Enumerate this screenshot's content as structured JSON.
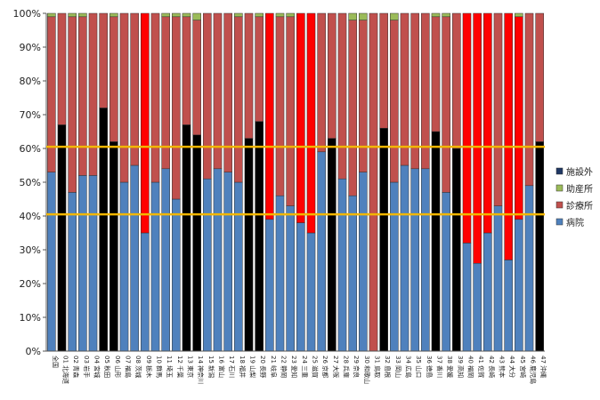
{
  "chart_data": {
    "type": "bar",
    "stacked": true,
    "ylim": [
      0,
      100
    ],
    "yticks": [
      "0%",
      "10%",
      "20%",
      "30%",
      "40%",
      "50%",
      "60%",
      "70%",
      "80%",
      "90%",
      "100%"
    ],
    "grid": false,
    "legend_position": "right",
    "reference_lines": [
      60.5,
      40.5
    ],
    "reference_line_color": "#f2b600",
    "categories": [
      "全国",
      "01 北海道",
      "02 青森",
      "03 岩手",
      "04 宮城",
      "05 秋田",
      "06 山形",
      "07 福島",
      "08 茨城",
      "09 栃木",
      "10 群馬",
      "11 埼玉",
      "12 千葉",
      "13 東京",
      "14 神奈川",
      "15 新潟",
      "16 富山",
      "17 石川",
      "18 福井",
      "19 山梨",
      "20 長野",
      "21 岐阜",
      "22 静岡",
      "23 愛知",
      "24 三重",
      "25 滋賀",
      "26 京都",
      "27 大阪",
      "28 兵庫",
      "29 奈良",
      "30 和歌山",
      "31 鳥取",
      "32 島根",
      "33 岡山",
      "34 広島",
      "35 山口",
      "36 徳島",
      "37 香川",
      "38 愛媛",
      "39 高知",
      "40 福岡",
      "41 佐賀",
      "42 長崎",
      "43 熊本",
      "44 大分",
      "45 宮崎",
      "46 鹿児島",
      "47 沖縄"
    ],
    "series": [
      {
        "name": "病院",
        "color": "#4f81bd",
        "values": [
          53,
          67,
          47,
          52,
          52,
          72,
          62,
          50,
          55,
          35,
          50,
          54,
          45,
          67,
          64,
          51,
          54,
          53,
          50,
          63,
          68,
          39,
          46,
          43,
          38,
          35,
          59,
          63,
          51,
          46,
          53,
          0,
          66,
          50,
          55,
          54,
          54,
          65,
          47,
          60,
          32,
          26,
          35,
          43,
          27,
          39,
          49,
          62
        ]
      },
      {
        "name": "診療所",
        "color": "#c0504d",
        "values": [
          46,
          33,
          52,
          47,
          48,
          28,
          37,
          50,
          45,
          65,
          50,
          45,
          54,
          32,
          34,
          49,
          46,
          47,
          49,
          37,
          31,
          61,
          53,
          56,
          62,
          65,
          41,
          37,
          49,
          52,
          45,
          100,
          34,
          48,
          45,
          46,
          46,
          34,
          52,
          40,
          68,
          74,
          65,
          57,
          73,
          60,
          51,
          38
        ]
      },
      {
        "name": "助産所",
        "color": "#9bbb59",
        "values": [
          1,
          0,
          1,
          1,
          0,
          0,
          1,
          0,
          0,
          0,
          0,
          1,
          1,
          1,
          2,
          0,
          0,
          0,
          1,
          0,
          1,
          0,
          1,
          1,
          0,
          0,
          0,
          0,
          0,
          2,
          2,
          0,
          0,
          2,
          0,
          0,
          0,
          1,
          1,
          0,
          0,
          0,
          0,
          0,
          0,
          1,
          0,
          0
        ]
      },
      {
        "name": "施設外",
        "color": "#1f3864",
        "values": [
          0,
          0,
          0,
          0,
          0,
          0,
          0,
          0,
          0,
          0,
          0,
          0,
          0,
          0,
          0,
          0,
          0,
          0,
          0,
          0,
          0,
          0,
          0,
          0,
          0,
          0,
          0,
          0,
          0,
          0,
          0,
          0,
          0,
          0,
          0,
          0,
          0,
          0,
          0,
          0,
          0,
          0,
          0,
          0,
          0,
          0,
          0,
          0
        ]
      }
    ],
    "highlight_black_bars": [
      "05 秋田",
      "06 山形",
      "13 東京",
      "14 神奈川",
      "19 山梨",
      "20 長野",
      "27 大阪",
      "32 島根",
      "37 香川",
      "39 高知",
      "47 沖縄",
      "01 北海道"
    ],
    "highlight_red_bars": [
      "09 栃木",
      "21 岐阜",
      "24 三重",
      "25 滋賀",
      "40 福岡",
      "41 佐賀",
      "42 長崎",
      "44 大分",
      "45 宮崎"
    ],
    "legend": [
      {
        "label": "施設外",
        "color": "#1f3864"
      },
      {
        "label": "助産所",
        "color": "#9bbb59"
      },
      {
        "label": "診療所",
        "color": "#c0504d"
      },
      {
        "label": "病院",
        "color": "#4f81bd"
      }
    ]
  }
}
